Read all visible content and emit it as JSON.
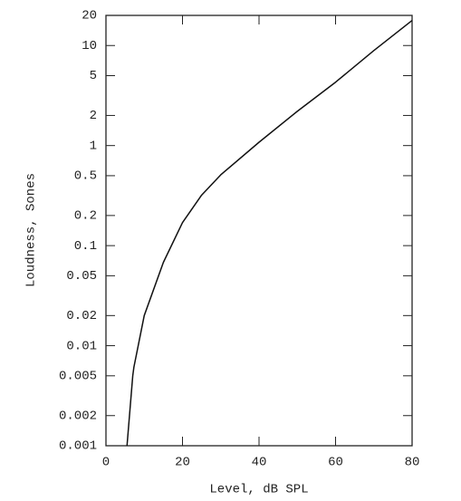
{
  "chart_data": {
    "type": "line",
    "x_label": "Level, dB SPL",
    "y_label": "Loudness, Sones",
    "x": [
      5.5,
      7,
      7.3,
      10,
      15,
      20,
      25,
      30,
      40,
      50,
      60,
      70,
      80
    ],
    "series": [
      {
        "color": "#111111",
        "values": [
          0.001,
          0.005,
          0.0061,
          0.02,
          0.068,
          0.17,
          0.32,
          0.51,
          1.08,
          2.2,
          4.3,
          8.9,
          17.8
        ]
      }
    ],
    "xlim": [
      0,
      80
    ],
    "xticks": [
      0,
      20,
      40,
      60,
      80
    ],
    "ylim": [
      0.001,
      20
    ],
    "yticks": [
      0.001,
      0.002,
      0.005,
      0.01,
      0.02,
      0.05,
      0.1,
      0.2,
      0.5,
      1,
      2,
      5,
      10,
      20
    ],
    "yscale": "log",
    "grid": false
  }
}
